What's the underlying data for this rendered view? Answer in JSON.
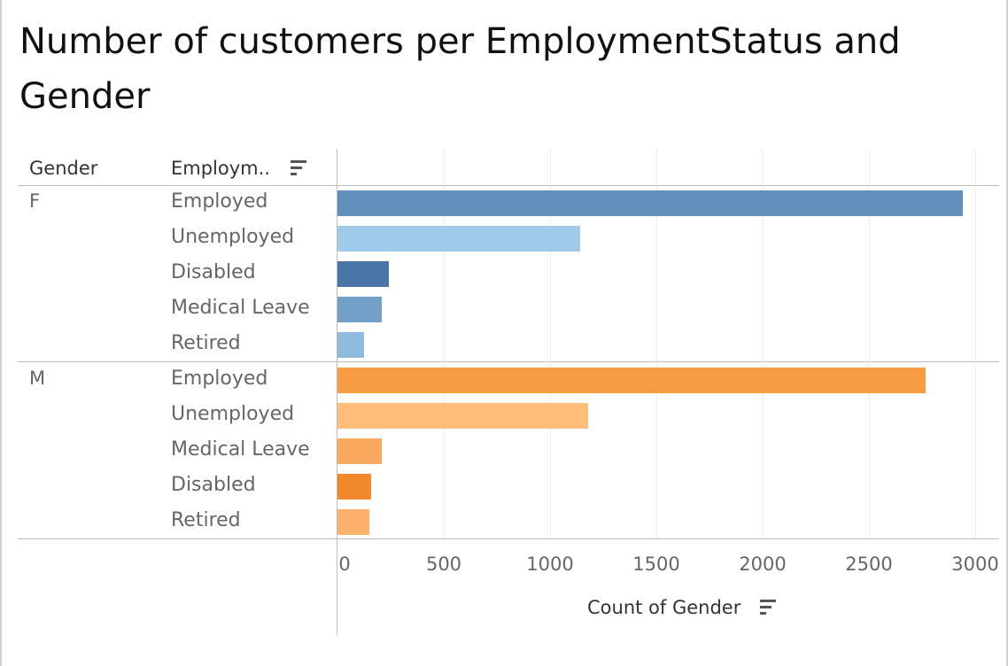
{
  "chart_data": {
    "type": "bar",
    "orientation": "horizontal",
    "title": "Number of customers per EmploymentStatus and Gender",
    "header_gender": "Gender",
    "header_status": "Employm..",
    "xlabel": "Count of Gender",
    "xlim": [
      0,
      3000
    ],
    "xticks": [
      "0",
      "500",
      "1000",
      "1500",
      "2000",
      "2500",
      "3000"
    ],
    "groups": [
      {
        "name": "F",
        "rows": [
          {
            "label": "Employed",
            "value": 2940,
            "color": "#6190bb"
          },
          {
            "label": "Unemployed",
            "value": 1140,
            "color": "#9fcaea"
          },
          {
            "label": "Disabled",
            "value": 240,
            "color": "#4a76a7"
          },
          {
            "label": "Medical Leave",
            "value": 210,
            "color": "#729fc8"
          },
          {
            "label": "Retired",
            "value": 125,
            "color": "#8fbbde"
          }
        ]
      },
      {
        "name": "M",
        "rows": [
          {
            "label": "Employed",
            "value": 2765,
            "color": "#f59c45"
          },
          {
            "label": "Unemployed",
            "value": 1180,
            "color": "#ffbd7c"
          },
          {
            "label": "Medical Leave",
            "value": 210,
            "color": "#fba860"
          },
          {
            "label": "Disabled",
            "value": 160,
            "color": "#f2882c"
          },
          {
            "label": "Retired",
            "value": 150,
            "color": "#fdb26c"
          }
        ]
      }
    ],
    "grid": true,
    "legend": "none"
  }
}
